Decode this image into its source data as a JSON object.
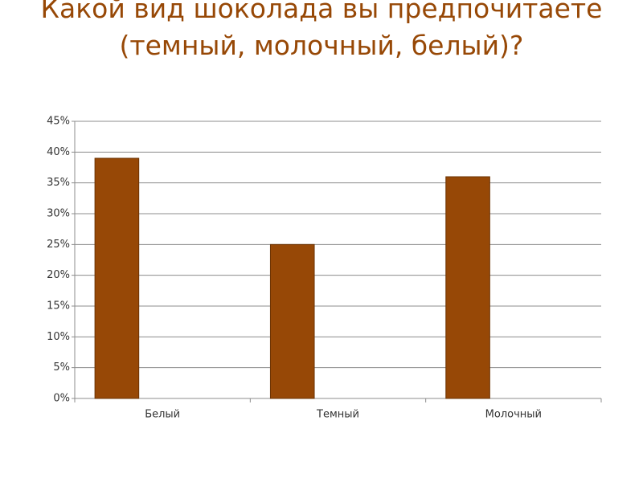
{
  "chart_data": {
    "type": "bar",
    "title": "Какой вид шоколада вы предпочитаете (темный, молочный, белый)?",
    "categories": [
      "Белый",
      "Темный",
      "Молочный"
    ],
    "values": [
      39,
      25,
      36
    ],
    "color": "#974806",
    "ylim": [
      0,
      45
    ],
    "yticks": [
      {
        "value": 0,
        "label": "0%"
      },
      {
        "value": 5,
        "label": "5%"
      },
      {
        "value": 10,
        "label": "10%"
      },
      {
        "value": 15,
        "label": "15%"
      },
      {
        "value": 20,
        "label": "20%"
      },
      {
        "value": 25,
        "label": "25%"
      },
      {
        "value": 30,
        "label": "30%"
      },
      {
        "value": 35,
        "label": "35%"
      },
      {
        "value": 40,
        "label": "40%"
      },
      {
        "value": 45,
        "label": "45%"
      }
    ],
    "grid": true
  }
}
